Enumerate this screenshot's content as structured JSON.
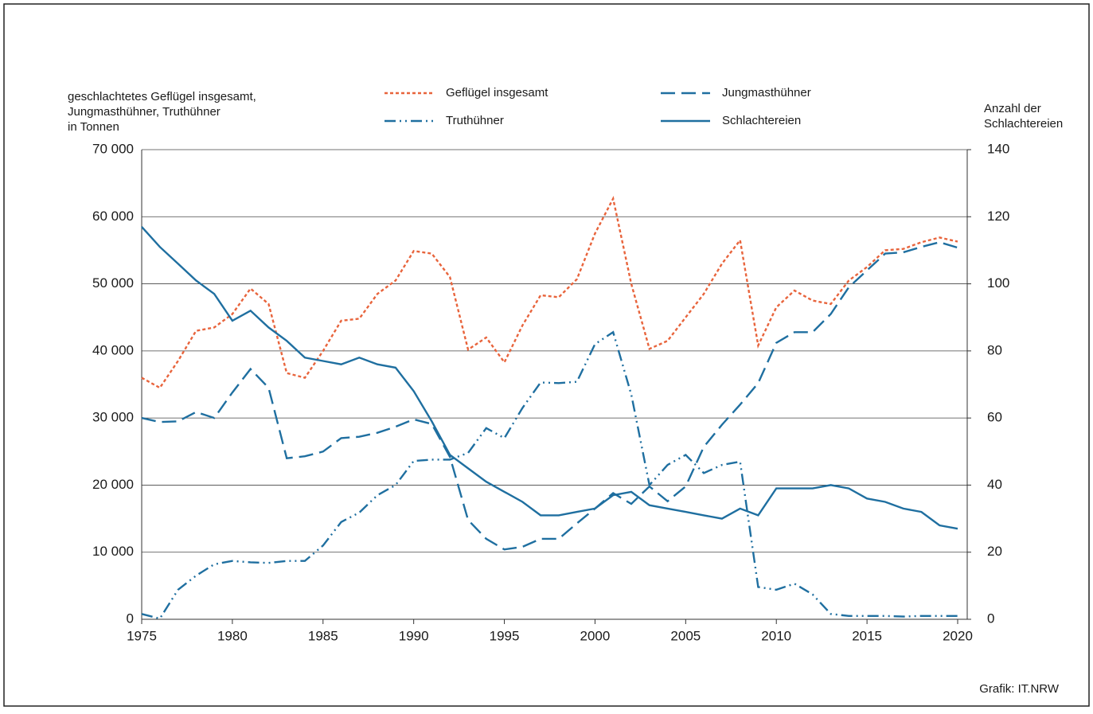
{
  "chart_data": {
    "type": "line",
    "y_axis_label": [
      "geschlachtetes Geflügel insgesamt,",
      "Jungmasthühner, Truthühner",
      "in Tonnen"
    ],
    "y2_axis_label": [
      "Anzahl der",
      "Schlachtereien"
    ],
    "source": "Grafik: IT.NRW",
    "x": [
      1975,
      1976,
      1977,
      1978,
      1979,
      1980,
      1981,
      1982,
      1983,
      1984,
      1985,
      1986,
      1987,
      1988,
      1989,
      1990,
      1991,
      1992,
      1993,
      1994,
      1995,
      1996,
      1997,
      1998,
      1999,
      2000,
      2001,
      2002,
      2003,
      2004,
      2005,
      2006,
      2007,
      2008,
      2009,
      2010,
      2011,
      2012,
      2013,
      2014,
      2015,
      2016,
      2017,
      2018,
      2019,
      2020
    ],
    "xlim": [
      1975,
      2020
    ],
    "xticks": [
      1975,
      1980,
      1985,
      1990,
      1995,
      2000,
      2005,
      2010,
      2015,
      2020
    ],
    "ylim": [
      0,
      70000
    ],
    "yticks": [
      0,
      {
        "value": 10000,
        "label": "10 000"
      },
      {
        "value": 20000,
        "label": "20 000"
      },
      {
        "value": 30000,
        "label": "30 000"
      },
      {
        "value": 40000,
        "label": "40 000"
      },
      {
        "value": 50000,
        "label": "50 000"
      },
      {
        "value": 60000,
        "label": "60 000"
      },
      {
        "value": 70000,
        "label": "70 000"
      }
    ],
    "y2lim": [
      0,
      140
    ],
    "y2ticks": [
      0,
      20,
      40,
      60,
      80,
      100,
      120,
      140
    ],
    "grid": true,
    "series": [
      {
        "name": "Geflügel insgesamt",
        "color": "#e8643c",
        "line_style": "dotted",
        "values": [
          36000,
          34500,
          38500,
          43000,
          43500,
          45500,
          49300,
          47000,
          36700,
          36000,
          40000,
          44500,
          44800,
          48500,
          50500,
          54900,
          54500,
          51000,
          40200,
          42000,
          38300,
          43800,
          48300,
          48000,
          50700,
          57500,
          62700,
          50000,
          40300,
          41500,
          45000,
          48500,
          53000,
          56500,
          40800,
          46500,
          49000,
          47500,
          47000,
          50500,
          52500,
          55000,
          55200,
          56200,
          56900,
          56300
        ]
      },
      {
        "name": "Jungmasthühner",
        "color": "#1f6fa0",
        "line_style": "dashed",
        "values": [
          30000,
          29400,
          29500,
          30900,
          30000,
          33800,
          37300,
          34500,
          24000,
          24300,
          25000,
          27000,
          27200,
          27800,
          28700,
          29800,
          29100,
          24200,
          14800,
          12000,
          10400,
          10800,
          12000,
          12000,
          14300,
          16500,
          18800,
          17200,
          19800,
          17600,
          19800,
          25700,
          29000,
          32000,
          35200,
          41200,
          42800,
          42800,
          45500,
          49500,
          52000,
          54500,
          54700,
          55500,
          56200,
          55400
        ]
      },
      {
        "name": "Truthühner",
        "color": "#1f6fa0",
        "line_style": "dash-dot-dot",
        "values": [
          800,
          100,
          4400,
          6500,
          8200,
          8700,
          8500,
          8400,
          8700,
          8700,
          11000,
          14500,
          15900,
          18500,
          20000,
          23600,
          23800,
          23800,
          24800,
          28500,
          27000,
          31500,
          35300,
          35200,
          35400,
          41000,
          42800,
          33500,
          20000,
          23000,
          24500,
          21800,
          23000,
          23500,
          4800,
          4400,
          5300,
          3700,
          800,
          500,
          500,
          500,
          400,
          500,
          500,
          500
        ]
      },
      {
        "name": "Schlachtereien",
        "color": "#1f6fa0",
        "line_style": "solid",
        "axis": "y2",
        "values": [
          117,
          111,
          106,
          101,
          97,
          89,
          92,
          87,
          83,
          78,
          77,
          76,
          78,
          76,
          75,
          68,
          59,
          49,
          45,
          41,
          38,
          35,
          31,
          31,
          32,
          33,
          37,
          38,
          34,
          33,
          32,
          31,
          30,
          33,
          31,
          39,
          39,
          39,
          40,
          39,
          36,
          35,
          33,
          32,
          28,
          27
        ]
      }
    ]
  }
}
